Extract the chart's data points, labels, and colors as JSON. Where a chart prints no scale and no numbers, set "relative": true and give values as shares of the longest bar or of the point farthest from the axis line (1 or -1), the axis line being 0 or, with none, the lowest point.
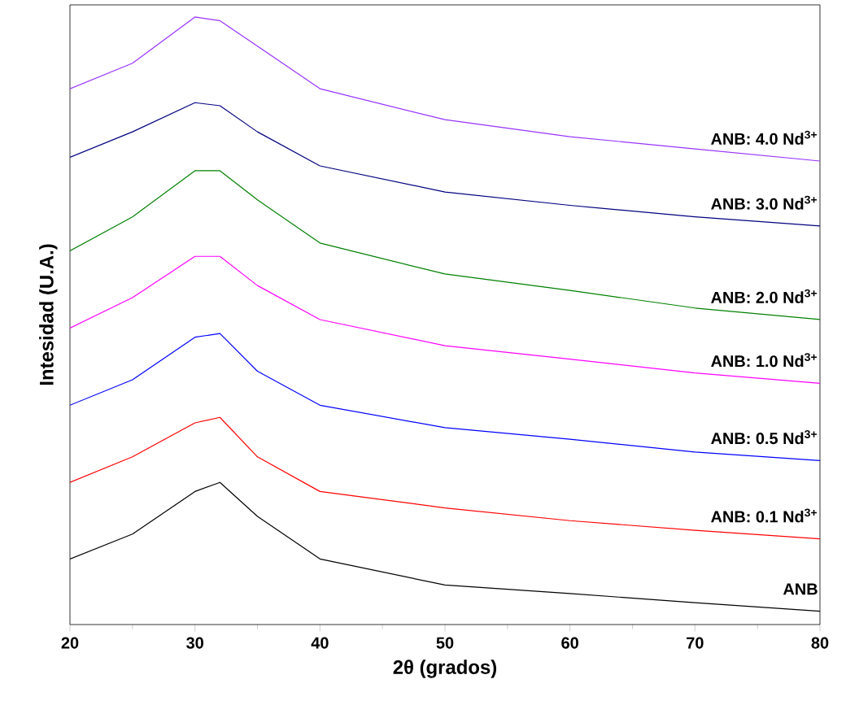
{
  "chart_data": {
    "type": "line",
    "relative": true,
    "xlabel": "**2θ (grados)**",
    "ylabel": "**Intesidad (U.A.)**",
    "xlim": [
      20,
      80
    ],
    "xticks": [
      20,
      30,
      40,
      50,
      60,
      70,
      80
    ],
    "tick_labels": "x",
    "grid": false,
    "x": [
      20,
      25,
      30,
      32,
      35,
      40,
      50,
      60,
      70,
      80
    ],
    "series": [
      {
        "name": "**ANB**",
        "color": "#000000",
        "values": [
          0.108,
          0.149,
          0.219,
          0.234,
          0.178,
          0.108,
          0.065,
          0.051,
          0.036,
          0.022
        ]
      },
      {
        "name": "**ANB: 0.1 Nd$^{3+}$**",
        "color": "#ff0000",
        "values": [
          0.234,
          0.276,
          0.332,
          0.341,
          0.276,
          0.219,
          0.192,
          0.171,
          0.155,
          0.141
        ]
      },
      {
        "name": "**ANB: 0.5 Nd$^{3+}$**",
        "color": "#0000ff",
        "values": [
          0.361,
          0.403,
          0.473,
          0.479,
          0.417,
          0.361,
          0.324,
          0.305,
          0.284,
          0.27
        ]
      },
      {
        "name": "**ANB: 1.0 Nd$^{3+}$**",
        "color": "#ff00ff",
        "values": [
          0.488,
          0.538,
          0.606,
          0.606,
          0.558,
          0.502,
          0.459,
          0.437,
          0.414,
          0.397
        ]
      },
      {
        "name": "**ANB: 2.0 Nd$^{3+}$**",
        "color": "#008000",
        "values": [
          0.615,
          0.671,
          0.747,
          0.747,
          0.699,
          0.628,
          0.577,
          0.55,
          0.521,
          0.502
        ]
      },
      {
        "name": "**ANB: 3.0 Nd$^{3+}$**",
        "color": "#000080",
        "values": [
          0.769,
          0.811,
          0.859,
          0.854,
          0.811,
          0.755,
          0.712,
          0.69,
          0.671,
          0.656
        ]
      },
      {
        "name": "**ANB: 4.0 Nd$^{3+}$**",
        "color": "#9933ff",
        "values": [
          0.882,
          0.924,
          1.0,
          0.994,
          0.952,
          0.882,
          0.831,
          0.803,
          0.783,
          0.763
        ]
      }
    ]
  }
}
